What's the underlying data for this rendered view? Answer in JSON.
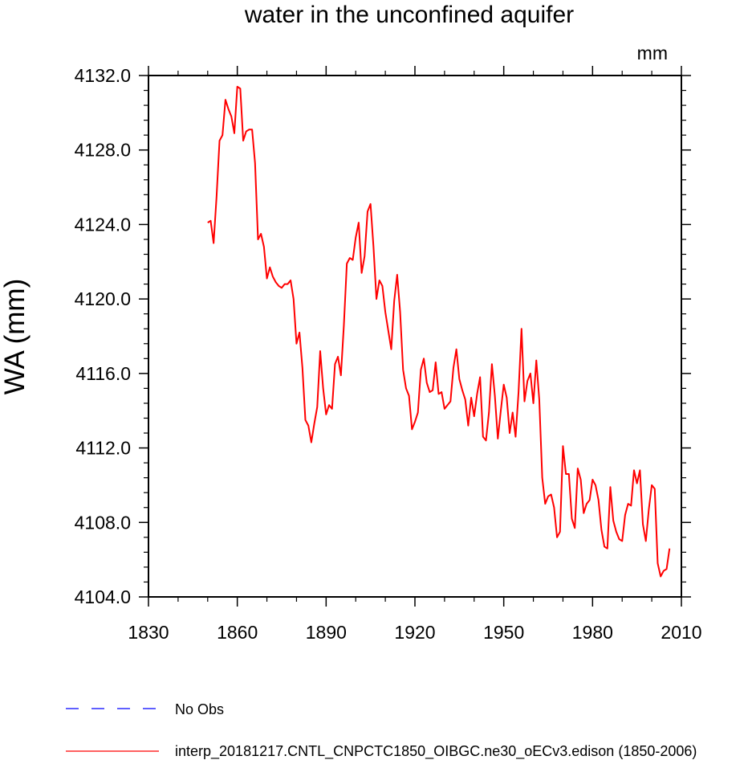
{
  "chart_data": {
    "type": "line",
    "title": "water in the unconfined aquifer",
    "units": "mm",
    "xlabel": "",
    "ylabel": "WA  (mm)",
    "xlim": [
      1830,
      2010
    ],
    "ylim": [
      4104,
      4132
    ],
    "xticks": [
      1830,
      1860,
      1890,
      1920,
      1950,
      1980,
      2010
    ],
    "yticks": [
      4104,
      4108,
      4112,
      4116,
      4120,
      4124,
      4128,
      4132
    ],
    "x_tick_labels": [
      "1830",
      "1860",
      "1890",
      "1920",
      "1950",
      "1980",
      "2010"
    ],
    "y_tick_labels": [
      "4104.0",
      "4108.0",
      "4112.0",
      "4116.0",
      "4120.0",
      "4124.0",
      "4128.0",
      "4132.0"
    ],
    "legend": [
      {
        "name": "No Obs",
        "color": "#0000ff",
        "style": "dashed"
      },
      {
        "name": "interp_20181217.CNTL_CNPCTC1850_OIBGC.ne30_oECv3.edison (1850-2006)",
        "color": "#ff0000",
        "style": "solid"
      }
    ],
    "series": [
      {
        "name": "interp_20181217.CNTL_CNPCTC1850_OIBGC.ne30_oECv3.edison (1850-2006)",
        "color": "#ff0000",
        "x": [
          1850,
          1851,
          1852,
          1853,
          1854,
          1855,
          1856,
          1857,
          1858,
          1859,
          1860,
          1861,
          1862,
          1863,
          1864,
          1865,
          1866,
          1867,
          1868,
          1869,
          1870,
          1871,
          1872,
          1873,
          1874,
          1875,
          1876,
          1877,
          1878,
          1879,
          1880,
          1881,
          1882,
          1883,
          1884,
          1885,
          1886,
          1887,
          1888,
          1889,
          1890,
          1891,
          1892,
          1893,
          1894,
          1895,
          1896,
          1897,
          1898,
          1899,
          1900,
          1901,
          1902,
          1903,
          1904,
          1905,
          1906,
          1907,
          1908,
          1909,
          1910,
          1911,
          1912,
          1913,
          1914,
          1915,
          1916,
          1917,
          1918,
          1919,
          1920,
          1921,
          1922,
          1923,
          1924,
          1925,
          1926,
          1927,
          1928,
          1929,
          1930,
          1931,
          1932,
          1933,
          1934,
          1935,
          1936,
          1937,
          1938,
          1939,
          1940,
          1941,
          1942,
          1943,
          1944,
          1945,
          1946,
          1947,
          1948,
          1949,
          1950,
          1951,
          1952,
          1953,
          1954,
          1955,
          1956,
          1957,
          1958,
          1959,
          1960,
          1961,
          1962,
          1963,
          1964,
          1965,
          1966,
          1967,
          1968,
          1969,
          1970,
          1971,
          1972,
          1973,
          1974,
          1975,
          1976,
          1977,
          1978,
          1979,
          1980,
          1981,
          1982,
          1983,
          1984,
          1985,
          1986,
          1987,
          1988,
          1989,
          1990,
          1991,
          1992,
          1993,
          1994,
          1995,
          1996,
          1997,
          1998,
          1999,
          2000,
          2001,
          2002,
          2003,
          2004,
          2005,
          2006
        ],
        "values": [
          4124.1,
          4124.2,
          4123.0,
          4125.5,
          4128.5,
          4128.8,
          4130.7,
          4130.2,
          4129.8,
          4128.9,
          4131.4,
          4131.3,
          4128.5,
          4129.0,
          4129.1,
          4129.1,
          4127.3,
          4123.2,
          4123.5,
          4122.8,
          4121.1,
          4121.7,
          4121.2,
          4120.9,
          4120.7,
          4120.6,
          4120.8,
          4120.8,
          4121.0,
          4120.0,
          4117.6,
          4118.2,
          4116.3,
          4113.5,
          4113.2,
          4112.3,
          4113.3,
          4114.2,
          4117.2,
          4115.2,
          4113.8,
          4114.3,
          4114.1,
          4116.5,
          4116.9,
          4115.9,
          4118.6,
          4121.9,
          4122.2,
          4122.1,
          4123.3,
          4124.1,
          4121.4,
          4122.3,
          4124.7,
          4125.1,
          4122.8,
          4120.0,
          4121.0,
          4120.7,
          4119.3,
          4118.3,
          4117.3,
          4119.9,
          4121.3,
          4119.3,
          4116.2,
          4115.2,
          4114.8,
          4113.0,
          4113.4,
          4113.9,
          4116.2,
          4116.8,
          4115.5,
          4115.0,
          4115.1,
          4116.6,
          4114.9,
          4115.0,
          4114.1,
          4114.3,
          4114.5,
          4116.3,
          4117.3,
          4115.7,
          4115.1,
          4114.6,
          4113.2,
          4114.7,
          4113.7,
          4114.9,
          4115.8,
          4112.6,
          4112.4,
          4113.9,
          4116.5,
          4114.8,
          4112.5,
          4114.0,
          4115.4,
          4114.7,
          4112.8,
          4113.9,
          4112.6,
          4115.0,
          4118.4,
          4114.5,
          4115.6,
          4116.0,
          4114.4,
          4116.7,
          4114.6,
          4110.4,
          4109.0,
          4109.4,
          4109.5,
          4108.8,
          4107.2,
          4107.5,
          4112.1,
          4110.6,
          4110.6,
          4108.2,
          4107.7,
          4110.9,
          4110.3,
          4108.5,
          4109.0,
          4109.2,
          4110.3,
          4110.0,
          4109.2,
          4107.6,
          4106.7,
          4106.6,
          4109.9,
          4108.1,
          4107.5,
          4107.1,
          4107.0,
          4108.4,
          4109.0,
          4108.9,
          4110.8,
          4110.1,
          4110.8,
          4107.9,
          4107.0,
          4108.7,
          4110.0,
          4109.8,
          4105.8,
          4105.1,
          4105.4,
          4105.5,
          4106.6
        ]
      }
    ]
  }
}
